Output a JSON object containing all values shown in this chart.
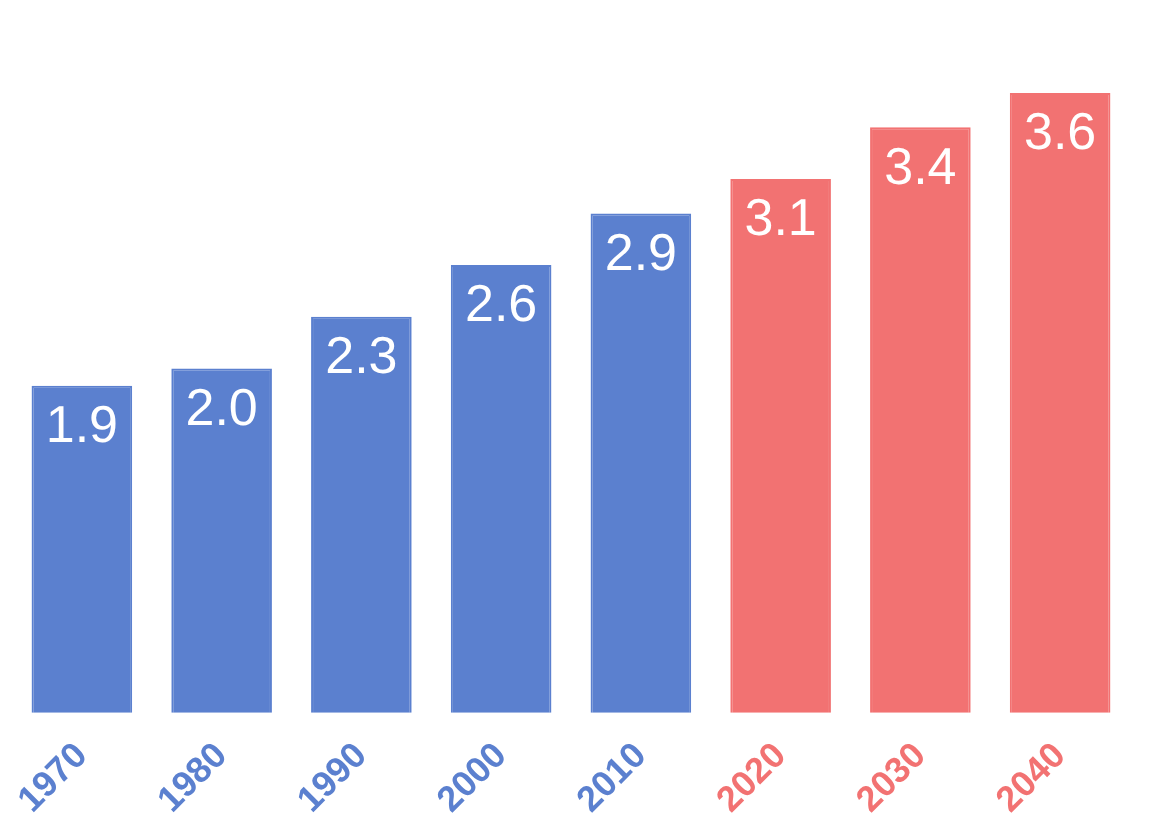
{
  "chart_data": {
    "type": "bar",
    "categories": [
      "1970",
      "1980",
      "1990",
      "2000",
      "2010",
      "2020",
      "2030",
      "2040"
    ],
    "values": [
      1.9,
      2.0,
      2.3,
      2.6,
      2.9,
      3.1,
      3.4,
      3.6
    ],
    "colors": [
      "#5b80cf",
      "#5b80cf",
      "#5b80cf",
      "#5b80cf",
      "#5b80cf",
      "#f27272",
      "#f27272",
      "#f27272"
    ],
    "value_labels": [
      "1.9",
      "2.0",
      "2.3",
      "2.6",
      "2.9",
      "3.1",
      "3.4",
      "3.6"
    ],
    "grid": false,
    "legend": false
  }
}
